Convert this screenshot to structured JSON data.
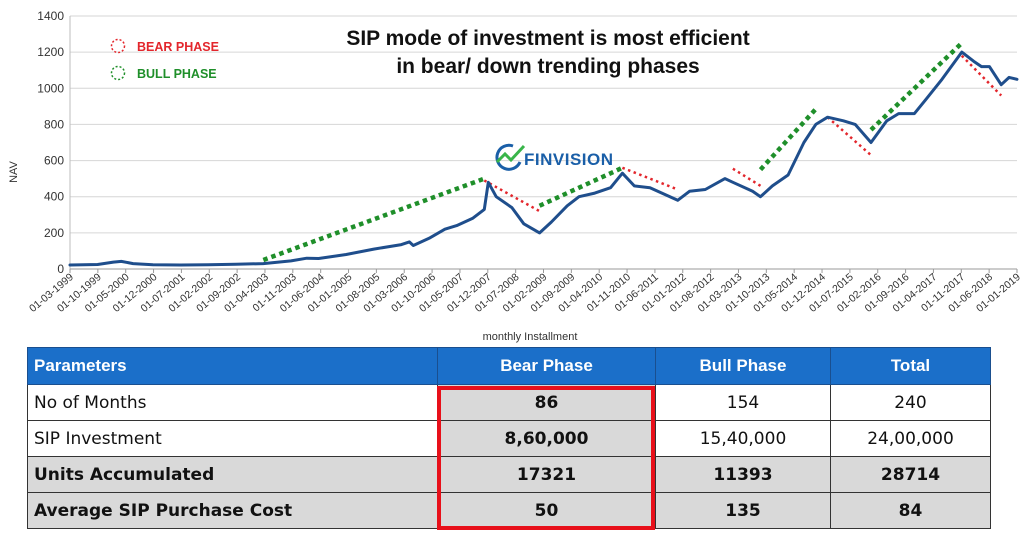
{
  "chart_data": {
    "type": "line",
    "title_line1": "SIP mode of investment is most efficient",
    "title_line2": "in bear/ down trending phases",
    "xlabel": "monthly Installment",
    "ylabel": "NAV",
    "ylim": [
      0,
      1400
    ],
    "yticks": [
      0,
      200,
      400,
      600,
      800,
      1000,
      1200,
      1400
    ],
    "xlim": [
      "1999-03",
      "2019-03"
    ],
    "xtick_labels": [
      "01-03-1999",
      "01-10-1999",
      "01-05-2000",
      "01-12-2000",
      "01-07-2001",
      "01-02-2002",
      "01-09-2002",
      "01-04-2003",
      "01-11-2003",
      "01-06-2004",
      "01-01-2005",
      "01-08-2005",
      "01-03-2006",
      "01-10-2006",
      "01-05-2007",
      "01-12-2007",
      "01-07-2008",
      "01-02-2009",
      "01-09-2009",
      "01-04-2010",
      "01-11-2010",
      "01-06-2011",
      "01-01-2012",
      "01-08-2012",
      "01-03-2013",
      "01-10-2013",
      "01-05-2014",
      "01-12-2014",
      "01-07-2015",
      "01-02-2016",
      "01-09-2016",
      "01-04-2017",
      "01-11-2017",
      "01-06-2018",
      "01-01-2019"
    ],
    "grid": "horizontal",
    "legend": [
      {
        "label": "BEAR PHASE",
        "color": "#e3262c"
      },
      {
        "label": "BULL PHASE",
        "color": "#1f8f2a"
      }
    ],
    "series": [
      {
        "color": "#1f4e8c",
        "points": [
          [
            "1999-03",
            22
          ],
          [
            "1999-10",
            25
          ],
          [
            "2000-02",
            38
          ],
          [
            "2000-04",
            42
          ],
          [
            "2000-07",
            30
          ],
          [
            "2000-12",
            24
          ],
          [
            "2001-07",
            22
          ],
          [
            "2002-02",
            24
          ],
          [
            "2002-09",
            26
          ],
          [
            "2003-04",
            30
          ],
          [
            "2003-11",
            45
          ],
          [
            "2004-03",
            60
          ],
          [
            "2004-06",
            58
          ],
          [
            "2005-01",
            80
          ],
          [
            "2005-08",
            110
          ],
          [
            "2006-03",
            135
          ],
          [
            "2006-05",
            150
          ],
          [
            "2006-06",
            130
          ],
          [
            "2006-10",
            170
          ],
          [
            "2007-02",
            220
          ],
          [
            "2007-05",
            240
          ],
          [
            "2007-09",
            280
          ],
          [
            "2007-12",
            330
          ],
          [
            "2008-01",
            480
          ],
          [
            "2008-03",
            400
          ],
          [
            "2008-07",
            340
          ],
          [
            "2008-10",
            250
          ],
          [
            "2009-02",
            200
          ],
          [
            "2009-05",
            260
          ],
          [
            "2009-09",
            350
          ],
          [
            "2009-12",
            400
          ],
          [
            "2010-04",
            420
          ],
          [
            "2010-08",
            450
          ],
          [
            "2010-11",
            530
          ],
          [
            "2011-02",
            460
          ],
          [
            "2011-06",
            450
          ],
          [
            "2011-09",
            420
          ],
          [
            "2012-01",
            380
          ],
          [
            "2012-04",
            430
          ],
          [
            "2012-08",
            440
          ],
          [
            "2013-01",
            500
          ],
          [
            "2013-03",
            480
          ],
          [
            "2013-08",
            430
          ],
          [
            "2013-10",
            400
          ],
          [
            "2014-01",
            460
          ],
          [
            "2014-05",
            520
          ],
          [
            "2014-09",
            700
          ],
          [
            "2014-12",
            800
          ],
          [
            "2015-03",
            840
          ],
          [
            "2015-07",
            820
          ],
          [
            "2015-10",
            800
          ],
          [
            "2016-02",
            700
          ],
          [
            "2016-06",
            820
          ],
          [
            "2016-09",
            860
          ],
          [
            "2017-01",
            860
          ],
          [
            "2017-04",
            940
          ],
          [
            "2017-08",
            1050
          ],
          [
            "2018-01",
            1200
          ],
          [
            "2018-04",
            1150
          ],
          [
            "2018-06",
            1120
          ],
          [
            "2018-08",
            1120
          ],
          [
            "2018-11",
            1020
          ],
          [
            "2019-01",
            1060
          ],
          [
            "2019-03",
            1050
          ]
        ]
      }
    ],
    "phase_lines": [
      {
        "phase": "bull",
        "from": [
          "2003-04",
          50
        ],
        "to": [
          "2007-12",
          500
        ]
      },
      {
        "phase": "bear",
        "from": [
          "2007-12",
          490
        ],
        "to": [
          "2009-02",
          320
        ]
      },
      {
        "phase": "bull",
        "from": [
          "2009-02",
          350
        ],
        "to": [
          "2010-11",
          560
        ]
      },
      {
        "phase": "bear",
        "from": [
          "2010-11",
          560
        ],
        "to": [
          "2012-01",
          440
        ]
      },
      {
        "phase": "bear",
        "from": [
          "2013-03",
          555
        ],
        "to": [
          "2013-10",
          460
        ]
      },
      {
        "phase": "bull",
        "from": [
          "2013-10",
          550
        ],
        "to": [
          "2014-12",
          885
        ]
      },
      {
        "phase": "bear",
        "from": [
          "2015-03",
          840
        ],
        "to": [
          "2016-02",
          630
        ]
      },
      {
        "phase": "bull",
        "from": [
          "2016-02",
          770
        ],
        "to": [
          "2018-01",
          1250
        ]
      },
      {
        "phase": "bear",
        "from": [
          "2018-01",
          1180
        ],
        "to": [
          "2018-11",
          960
        ]
      }
    ],
    "logo_text": "FINVISION"
  },
  "table": {
    "headers": [
      "Parameters",
      "Bear Phase",
      "Bull Phase",
      "Total"
    ],
    "rows": [
      {
        "label": "No of Months",
        "values": [
          "86",
          "154",
          "240"
        ],
        "bold": false
      },
      {
        "label": "SIP Investment",
        "values": [
          "8,60,000",
          "15,40,000",
          "24,00,000"
        ],
        "bold": false
      },
      {
        "label": "Units Accumulated",
        "values": [
          "17321",
          "11393",
          "28714"
        ],
        "bold": true
      },
      {
        "label": "Average SIP Purchase Cost",
        "values": [
          "50",
          "135",
          "84"
        ],
        "bold": true
      }
    ],
    "highlight_color": "#e8101a"
  }
}
